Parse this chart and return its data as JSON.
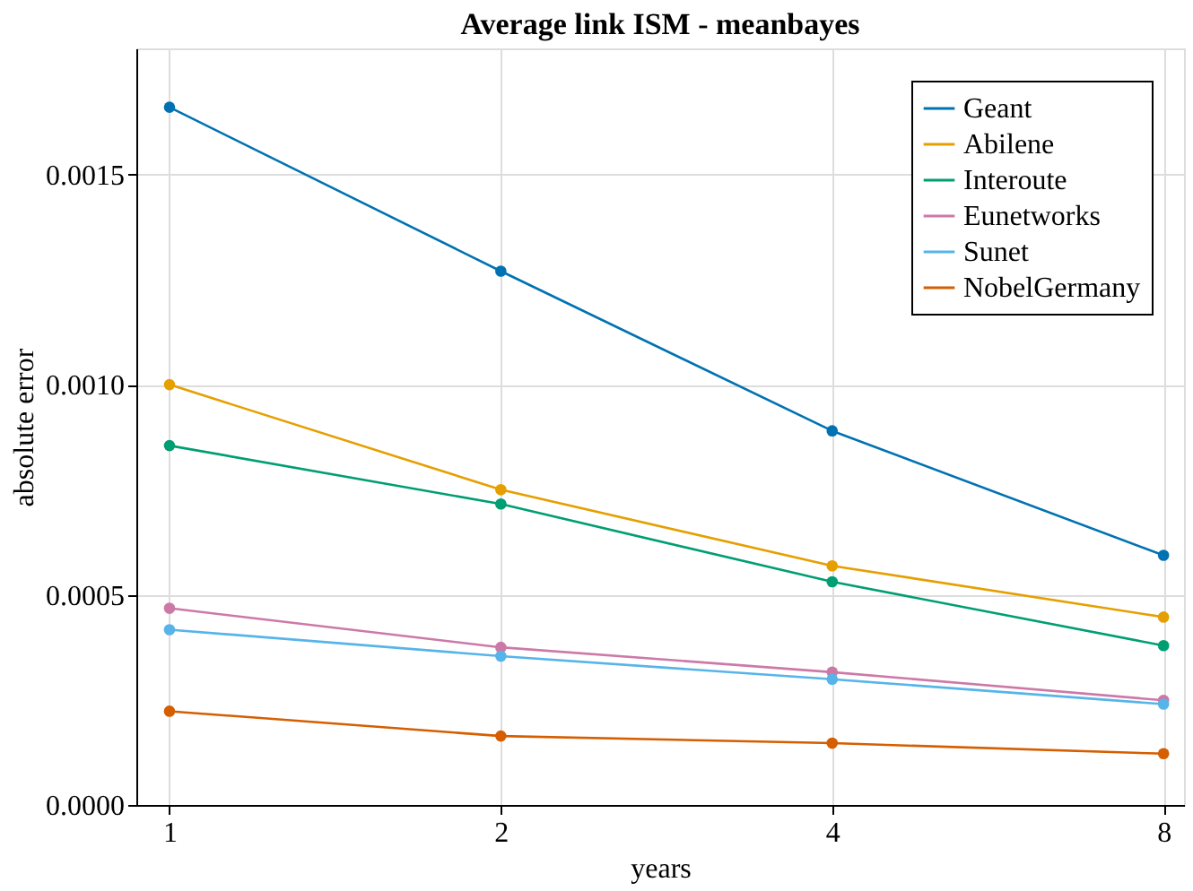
{
  "chart_data": {
    "type": "line",
    "title": "Average link ISM - meanbayes",
    "xlabel": "years",
    "ylabel": "absolute error",
    "x": [
      1,
      2,
      4,
      8
    ],
    "log": "x",
    "xlim": [
      0.933,
      8.35
    ],
    "xticks": [
      1,
      2,
      4,
      8
    ],
    "ylim": [
      0,
      0.0018
    ],
    "yticks": [
      {
        "value": 0,
        "label": "0.0000"
      },
      {
        "value": 0.0005,
        "label": "0.0005"
      },
      {
        "value": 0.001,
        "label": "0.0010"
      },
      {
        "value": 0.0015,
        "label": "0.0015"
      }
    ],
    "grid": true,
    "legend": "top right",
    "marker": "circle",
    "line_style": "solid",
    "series": [
      {
        "name": "Geant",
        "color": "#0072b2",
        "values": [
          0.00166,
          0.00127,
          0.00089,
          0.000594
        ]
      },
      {
        "name": "Abilene",
        "color": "#e69f00",
        "values": [
          0.001,
          0.00075,
          0.000569,
          0.000447
        ]
      },
      {
        "name": "Interoute",
        "color": "#009e73",
        "values": [
          0.000855,
          0.000716,
          0.000531,
          0.000379
        ]
      },
      {
        "name": "Eunetworks",
        "color": "#cc79a7",
        "values": [
          0.000468,
          0.000375,
          0.000316,
          0.000249
        ]
      },
      {
        "name": "Sunet",
        "color": "#56b4e9",
        "values": [
          0.000417,
          0.000354,
          0.000299,
          0.00024
        ]
      },
      {
        "name": "NobelGermany",
        "color": "#d55e00",
        "values": [
          0.000223,
          0.000164,
          0.000147,
          0.000122
        ]
      }
    ]
  }
}
